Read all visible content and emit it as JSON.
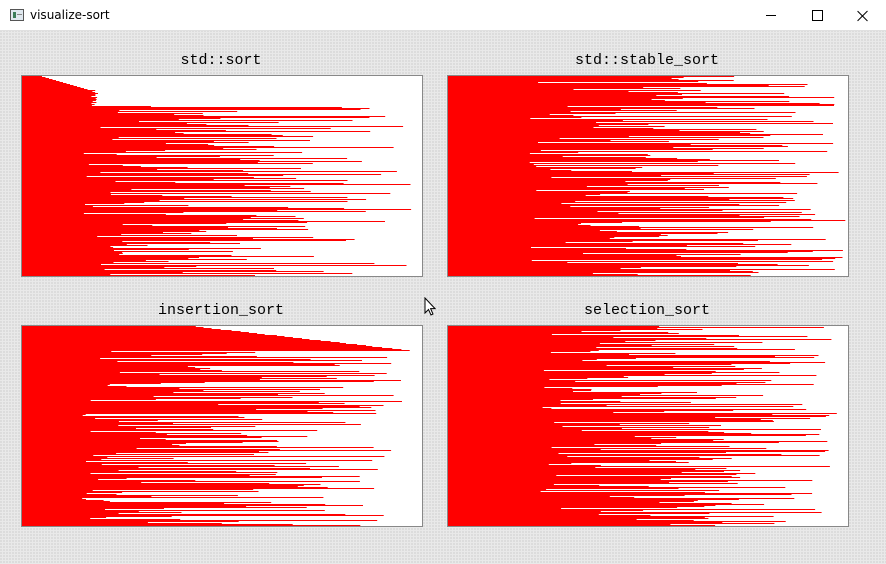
{
  "window": {
    "title": "visualize-sort",
    "icon": "app-window-icon",
    "controls": [
      "minimize-icon",
      "maximize-icon",
      "close-icon"
    ]
  },
  "colors": {
    "bar": "#ff0000",
    "panel_background": "#ffffff",
    "panel_border": "#888888"
  },
  "panels": [
    {
      "title": "std::sort",
      "algorithm": "std::sort",
      "array_length": 200
    },
    {
      "title": "std::stable_sort",
      "algorithm": "std::stable_sort",
      "array_length": 200
    },
    {
      "title": "insertion_sort",
      "algorithm": "insertion_sort",
      "array_length": 200
    },
    {
      "title": "selection_sort",
      "algorithm": "selection_sort",
      "array_length": 200
    }
  ]
}
